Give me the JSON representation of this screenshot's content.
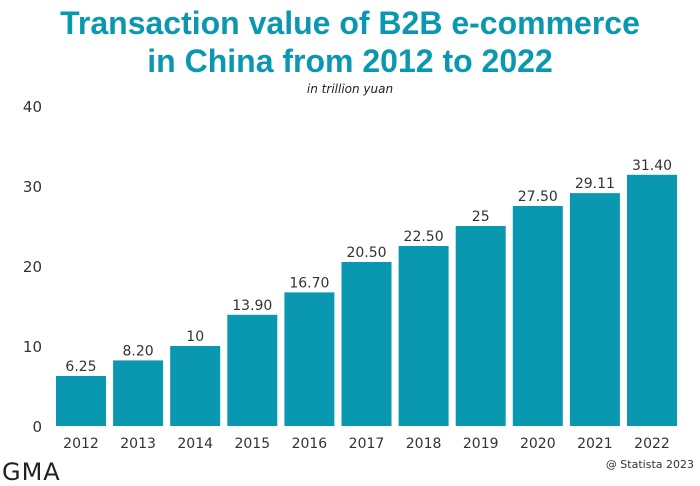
{
  "chart_data": {
    "type": "bar",
    "title": "Transaction value of B2B e-commerce in China from 2012 to 2022",
    "subtitle": "in trillion yuan",
    "categories": [
      "2012",
      "2013",
      "2014",
      "2015",
      "2016",
      "2017",
      "2018",
      "2019",
      "2020",
      "2021",
      "2022"
    ],
    "values": [
      6.25,
      8.2,
      10,
      13.9,
      16.7,
      20.5,
      22.5,
      25,
      27.5,
      29.11,
      31.4
    ],
    "data_labels": [
      "6.25",
      "8.20",
      "10",
      "13.90",
      "16.70",
      "20.50",
      "22.50",
      "25",
      "27.50",
      "29.11",
      "31.40"
    ],
    "yticks": [
      "0",
      "10",
      "20",
      "30",
      "40"
    ],
    "ylim": [
      0,
      40
    ],
    "grid": false,
    "bar_color": "#0a98b0"
  },
  "footer": {
    "logo": "GMA",
    "credit": "@ Statista 2023"
  }
}
